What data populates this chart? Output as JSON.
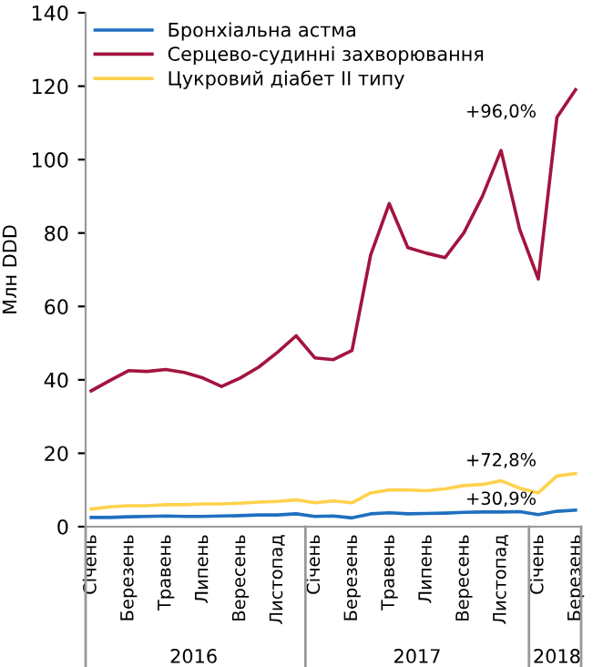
{
  "chart_data": {
    "type": "line",
    "ylabel": "Млн DDD",
    "categories": [
      "Січень",
      null,
      "Березень",
      null,
      "Травень",
      null,
      "Липень",
      null,
      "Вересень",
      null,
      "Листопад",
      null,
      "Січень",
      null,
      "Березень",
      null,
      "Травень",
      null,
      "Липень",
      null,
      "Вересень",
      null,
      "Листопад",
      null,
      "Січень",
      null,
      "Березень"
    ],
    "series": [
      {
        "name": "Бронхіальна астма",
        "color": "#1f6fc0",
        "values": [
          2.5,
          2.5,
          2.7,
          2.8,
          2.9,
          2.8,
          2.8,
          2.9,
          3.0,
          3.2,
          3.2,
          3.5,
          2.8,
          2.9,
          2.4,
          3.5,
          3.8,
          3.5,
          3.6,
          3.7,
          3.9,
          4.0,
          4.0,
          4.1,
          3.3,
          4.2,
          4.5
        ]
      },
      {
        "name": "Серцево-судинні захворювання",
        "color": "#a3143f",
        "values": [
          37,
          39.8,
          42.5,
          42.3,
          42.8,
          42,
          40.5,
          38.2,
          40.5,
          43.5,
          47.5,
          52,
          46,
          45.5,
          48,
          74,
          88,
          76,
          74.5,
          73.3,
          80,
          90,
          102.5,
          81,
          67.5,
          111.5,
          119
        ]
      },
      {
        "name": "Цукровий діабет II типу",
        "color": "#ffd24d",
        "values": [
          4.8,
          5.4,
          5.7,
          5.7,
          6,
          6,
          6.2,
          6.2,
          6.4,
          6.7,
          6.9,
          7.3,
          6.5,
          7,
          6.5,
          9.2,
          10,
          10,
          9.8,
          10.3,
          11.2,
          11.5,
          12.5,
          10.5,
          9.2,
          13.8,
          14.5
        ]
      }
    ],
    "ylim": [
      0,
      140
    ],
    "yticks": [
      0,
      20,
      40,
      60,
      80,
      100,
      120,
      140
    ],
    "grid": false,
    "legend": "top left",
    "marker": "none",
    "line_style": "solid",
    "annotations": [
      "+96,0%",
      "+72,8%",
      "+30,9%",
      "2016",
      "2017",
      "2018"
    ]
  }
}
